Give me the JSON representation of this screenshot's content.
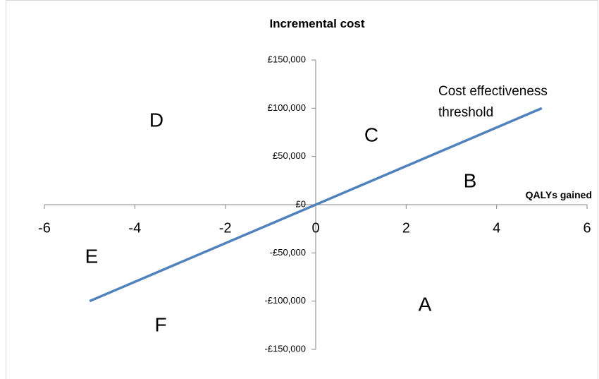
{
  "chart_data": {
    "type": "line",
    "y_label": "Incremental cost",
    "x_label": "QALYs gained",
    "x": [
      -5,
      5
    ],
    "series": [
      {
        "color": "#4f81bd",
        "values": [
          -100000,
          100000
        ]
      }
    ],
    "xlim": [
      -6,
      6
    ],
    "xticks": [
      -6,
      -4,
      -2,
      0,
      2,
      4,
      6
    ],
    "ylim": [
      -150000,
      150000
    ],
    "yticks": [
      {
        "value": -150000,
        "label": "-£150,000"
      },
      {
        "value": -100000,
        "label": "-£100,000"
      },
      {
        "value": -50000,
        "label": "-£50,000"
      },
      {
        "value": 0,
        "label": "£0"
      },
      {
        "value": 50000,
        "label": "£50,000"
      },
      {
        "value": 100000,
        "label": "£100,000"
      },
      {
        "value": 150000,
        "label": "£150,000"
      }
    ],
    "annotations": [
      "Cost effectiveness threshold",
      "A",
      "B",
      "C",
      "D",
      "E",
      "F"
    ]
  }
}
